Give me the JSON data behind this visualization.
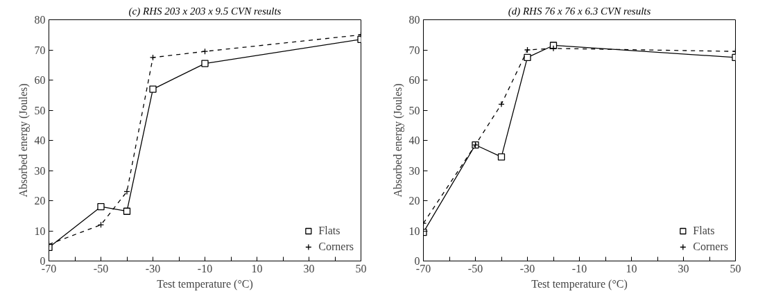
{
  "chart_data": [
    {
      "type": "line",
      "title": "(c) RHS 203 x 203 x 9.5 CVN results",
      "xlabel": "Test temperature (°C)",
      "ylabel": "Absorbed energy (Joules)",
      "x": [
        -70,
        -50,
        -40,
        -30,
        -10,
        50
      ],
      "series": [
        {
          "name": "Flats",
          "color": "#000000",
          "marker": "square",
          "line_style": "solid",
          "values": [
            4.5,
            18,
            16.5,
            57,
            65.5,
            73.5
          ]
        },
        {
          "name": "Corners",
          "color": "#000000",
          "marker": "cross",
          "line_style": "dashed",
          "values": [
            5.5,
            12,
            23,
            67.5,
            69.5,
            75
          ]
        }
      ],
      "xlim": [
        -70,
        50
      ],
      "ylim": [
        0,
        80
      ],
      "xticks": [
        -70,
        {
          "value": -60,
          "label": null
        },
        -50,
        {
          "value": -40,
          "label": null
        },
        -30,
        {
          "value": -20,
          "label": null
        },
        -10,
        {
          "value": 0,
          "label": null
        },
        10,
        {
          "value": 20,
          "label": null
        },
        30,
        {
          "value": 40,
          "label": null
        },
        50
      ],
      "yticks": [
        0,
        10,
        20,
        30,
        40,
        50,
        60,
        70,
        80
      ],
      "grid": false,
      "legend": "bottom right"
    },
    {
      "type": "line",
      "title": "(d) RHS 76 x 76 x 6.3 CVN results",
      "xlabel": "Test temperature (°C)",
      "ylabel": "Absorbed energy (Joules)",
      "x": [
        -70,
        -50,
        -40,
        -30,
        -20,
        50
      ],
      "series": [
        {
          "name": "Flats",
          "color": "#000000",
          "marker": "square",
          "line_style": "solid",
          "values": [
            9.5,
            38.5,
            34.5,
            67.5,
            71.5,
            67.5
          ]
        },
        {
          "name": "Corners",
          "color": "#000000",
          "marker": "cross",
          "line_style": "dashed",
          "values": [
            12.5,
            38.5,
            52,
            70,
            70.5,
            69.5
          ]
        }
      ],
      "xlim": [
        -70,
        50
      ],
      "ylim": [
        0,
        80
      ],
      "xticks": [
        -70,
        {
          "value": -60,
          "label": null
        },
        -50,
        {
          "value": -40,
          "label": null
        },
        -30,
        {
          "value": -20,
          "label": null
        },
        -10,
        {
          "value": 0,
          "label": null
        },
        10,
        {
          "value": 20,
          "label": null
        },
        30,
        {
          "value": 40,
          "label": null
        },
        50
      ],
      "yticks": [
        0,
        10,
        20,
        30,
        40,
        50,
        60,
        70,
        80
      ],
      "grid": false,
      "legend": "bottom right"
    }
  ]
}
